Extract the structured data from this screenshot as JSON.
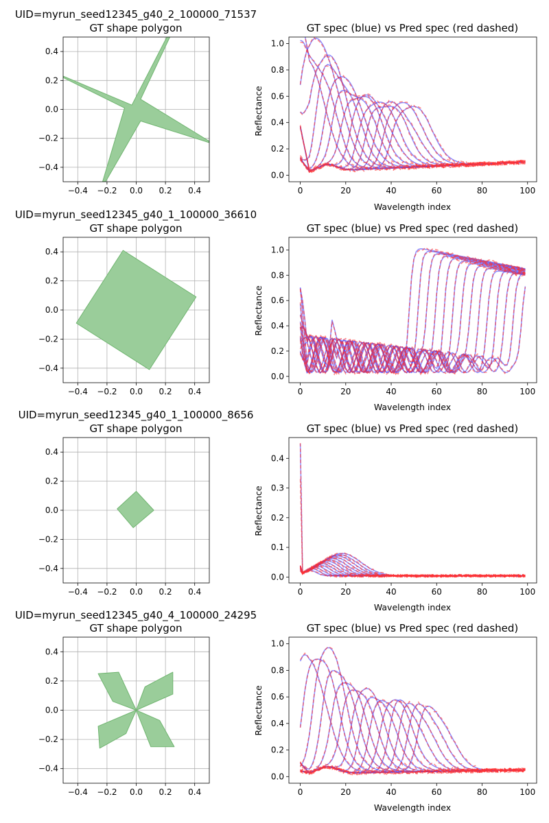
{
  "panels": [
    {
      "uid": "UID=myrun_seed12345_g40_2_100000_71537",
      "shape_title": "GT shape polygon",
      "spec_title": "GT spec (blue) vs Pred spec (red dashed)",
      "spec_xlabel": "Wavelength index",
      "spec_ylabel": "Reflectance"
    },
    {
      "uid": "UID=myrun_seed12345_g40_1_100000_36610",
      "shape_title": "GT shape polygon",
      "spec_title": "GT spec (blue) vs Pred spec (red dashed)",
      "spec_xlabel": "Wavelength index",
      "spec_ylabel": "Reflectance"
    },
    {
      "uid": "UID=myrun_seed12345_g40_1_100000_8656",
      "shape_title": "GT shape polygon",
      "spec_title": "GT spec (blue) vs Pred spec (red dashed)",
      "spec_xlabel": "Wavelength index",
      "spec_ylabel": "Reflectance"
    },
    {
      "uid": "UID=myrun_seed12345_g40_4_100000_24295",
      "shape_title": "GT shape polygon",
      "spec_title": "GT spec (blue) vs Pred spec (red dashed)",
      "spec_xlabel": "Wavelength index",
      "spec_ylabel": "Reflectance"
    }
  ],
  "colors": {
    "polygon_fill": "#9acd9a",
    "polygon_edge": "#6fb46f",
    "gt_line": "#4040ff",
    "pred_line": "#ff3030"
  },
  "chart_data": [
    {
      "type": "area",
      "xlim": [
        -0.5,
        0.5
      ],
      "ylim": [
        -0.5,
        0.5
      ],
      "xticks": [
        -0.4,
        -0.2,
        0.0,
        0.2,
        0.4
      ],
      "yticks": [
        -0.4,
        -0.2,
        0.0,
        0.2,
        0.4
      ],
      "grid": true,
      "polygon": [
        [
          0.21,
          0.5
        ],
        [
          0.23,
          0.5
        ],
        [
          0.03,
          0.07
        ],
        [
          0.5,
          -0.22
        ],
        [
          0.5,
          -0.23
        ],
        [
          0.03,
          -0.08
        ],
        [
          -0.21,
          -0.5
        ],
        [
          -0.23,
          -0.5
        ],
        [
          -0.08,
          0.01
        ],
        [
          -0.5,
          0.22
        ],
        [
          -0.5,
          0.23
        ],
        [
          -0.03,
          0.03
        ]
      ]
    },
    {
      "type": "line",
      "xlim": [
        -5,
        104
      ],
      "ylim": [
        -0.05,
        1.05
      ],
      "xticks": [
        0,
        20,
        40,
        60,
        80,
        100
      ],
      "yticks": [
        0.0,
        0.2,
        0.4,
        0.6,
        0.8,
        1.0
      ],
      "grid": false,
      "family": "bumps",
      "n_curves": 14,
      "peak_start": 8,
      "peak_step": 3.7,
      "top": [
        0.9,
        0.92,
        0.98,
        0.86,
        0.78,
        0.7,
        0.64,
        0.6,
        0.56,
        0.53,
        0.52,
        0.5,
        0.5,
        0.48
      ],
      "plateau": 16,
      "width": 3.5,
      "baseline": [
        0.02,
        0.1
      ],
      "noise_start": 0.35
    },
    {
      "type": "area",
      "xlim": [
        -0.5,
        0.5
      ],
      "ylim": [
        -0.5,
        0.5
      ],
      "xticks": [
        -0.4,
        -0.2,
        0.0,
        0.2,
        0.4
      ],
      "yticks": [
        -0.4,
        -0.2,
        0.0,
        0.2,
        0.4
      ],
      "grid": true,
      "polygon": [
        [
          -0.09,
          0.41
        ],
        [
          0.41,
          0.09
        ],
        [
          0.09,
          -0.41
        ],
        [
          -0.41,
          -0.09
        ]
      ]
    },
    {
      "type": "line",
      "xlim": [
        -5,
        104
      ],
      "ylim": [
        -0.05,
        1.1
      ],
      "xticks": [
        0,
        20,
        40,
        60,
        80,
        100
      ],
      "yticks": [
        0.0,
        0.2,
        0.4,
        0.6,
        0.8,
        1.0
      ],
      "grid": false,
      "family": "steps",
      "n_curves": 14,
      "step_start": 48,
      "step_step": 3.8,
      "top": [
        1.0,
        0.98,
        0.96,
        0.94,
        0.92,
        0.9,
        0.88,
        0.86,
        0.84,
        0.82,
        0.82,
        0.8,
        0.8,
        0.8
      ],
      "low_amp": 0.3,
      "noise_start": 0.4
    },
    {
      "type": "area",
      "xlim": [
        -0.5,
        0.5
      ],
      "ylim": [
        -0.5,
        0.5
      ],
      "xticks": [
        -0.4,
        -0.2,
        0.0,
        0.2,
        0.4
      ],
      "yticks": [
        -0.4,
        -0.2,
        0.0,
        0.2,
        0.4
      ],
      "grid": true,
      "polygon": [
        [
          0.0,
          0.13
        ],
        [
          0.12,
          0.0
        ],
        [
          -0.02,
          -0.12
        ],
        [
          -0.13,
          0.01
        ]
      ]
    },
    {
      "type": "line",
      "xlim": [
        -5,
        104
      ],
      "ylim": [
        -0.02,
        0.47
      ],
      "xticks": [
        0,
        20,
        40,
        60,
        80,
        100
      ],
      "yticks": [
        0.0,
        0.1,
        0.2,
        0.3,
        0.4
      ],
      "grid": false,
      "family": "decay",
      "n_curves": 14,
      "spike": 0.45,
      "pred_spike": 0.33
    },
    {
      "type": "area",
      "xlim": [
        -0.5,
        0.5
      ],
      "ylim": [
        -0.5,
        0.5
      ],
      "xticks": [
        -0.4,
        -0.2,
        0.0,
        0.2,
        0.4
      ],
      "yticks": [
        -0.4,
        -0.2,
        0.0,
        0.2,
        0.4
      ],
      "grid": true,
      "polygon": [
        [
          0.0,
          0.0
        ],
        [
          0.06,
          0.16
        ],
        [
          0.25,
          0.26
        ],
        [
          0.25,
          0.11
        ],
        [
          0.0,
          0.0
        ],
        [
          0.16,
          -0.07
        ],
        [
          0.26,
          -0.25
        ],
        [
          0.1,
          -0.25
        ],
        [
          0.0,
          0.0
        ],
        [
          -0.07,
          -0.16
        ],
        [
          -0.25,
          -0.26
        ],
        [
          -0.26,
          -0.11
        ],
        [
          0.0,
          0.0
        ],
        [
          -0.16,
          0.06
        ],
        [
          -0.26,
          0.25
        ],
        [
          -0.12,
          0.26
        ]
      ]
    },
    {
      "type": "line",
      "xlim": [
        -5,
        104
      ],
      "ylim": [
        -0.05,
        1.05
      ],
      "xticks": [
        0,
        20,
        40,
        60,
        80,
        100
      ],
      "yticks": [
        0.0,
        0.2,
        0.4,
        0.6,
        0.8,
        1.0
      ],
      "grid": false,
      "family": "bumps",
      "n_curves": 14,
      "peak_start": 9,
      "peak_step": 4.2,
      "top": [
        0.9,
        0.98,
        1.0,
        0.86,
        0.78,
        0.73,
        0.7,
        0.66,
        0.63,
        0.6,
        0.58,
        0.56,
        0.55,
        0.53
      ],
      "plateau": 12,
      "width": 3.5,
      "baseline": [
        0.02,
        0.05
      ],
      "noise_start": 0.08
    }
  ]
}
